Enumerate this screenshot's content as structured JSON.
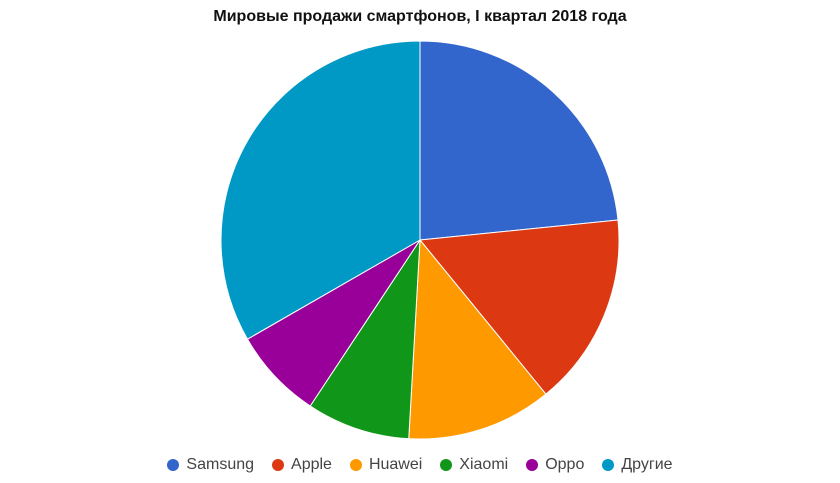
{
  "chart_data": {
    "type": "pie",
    "title": "Мировые продажи смартфонов, I квартал 2018 года",
    "categories": [
      "Samsung",
      "Apple",
      "Huawei",
      "Xiaomi",
      "Oppo",
      "Другие"
    ],
    "values": [
      23.4,
      15.7,
      11.8,
      8.4,
      7.4,
      33.3
    ],
    "unit": "%",
    "colors": [
      "#3366cc",
      "#dc3912",
      "#ff9900",
      "#109618",
      "#990099",
      "#0099c6"
    ],
    "start_angle": "top, clockwise",
    "legend_position": "bottom"
  }
}
